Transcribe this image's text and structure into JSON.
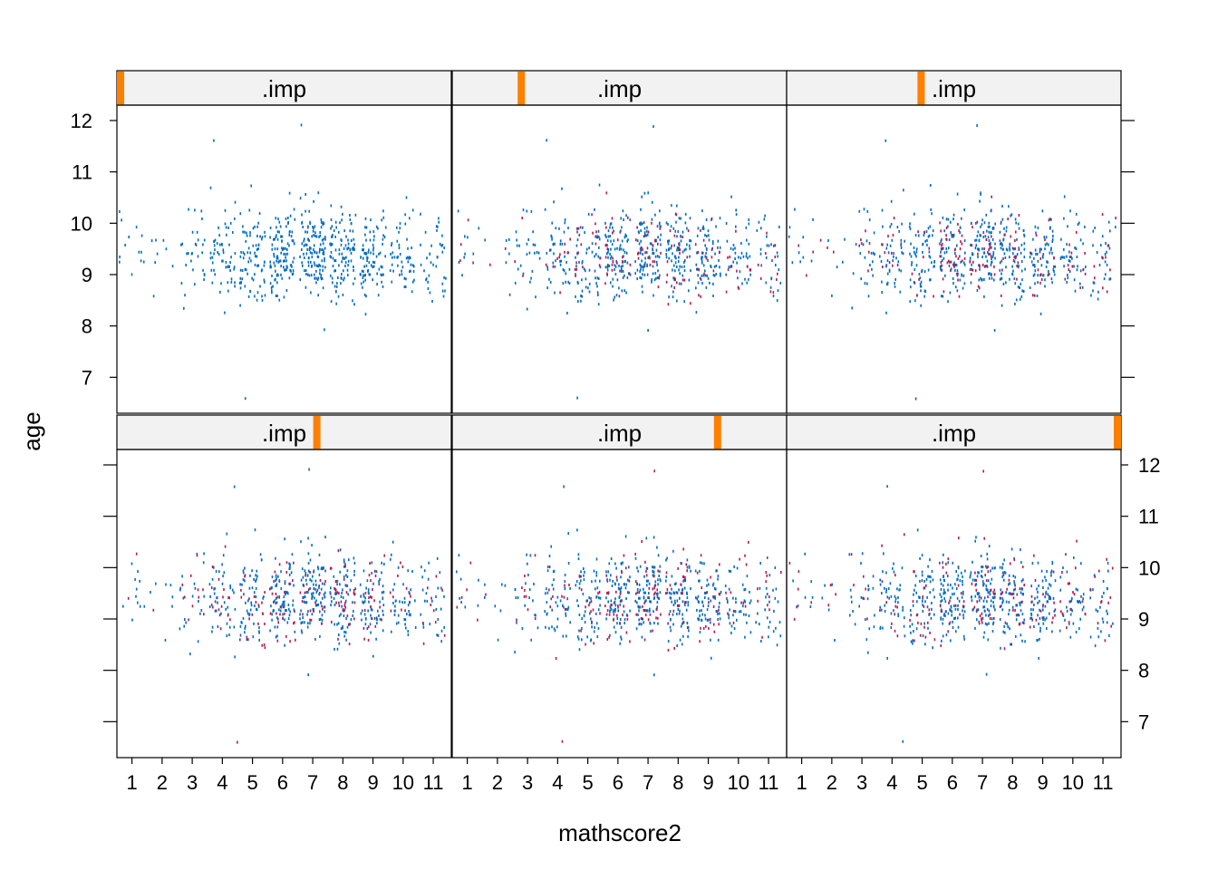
{
  "chart_data": {
    "type": "scatter",
    "title": "",
    "xlabel": "mathscore2",
    "ylabel": "age",
    "strip_label": ".imp",
    "xlim": [
      0.5,
      11.6
    ],
    "ylim": [
      6.3,
      12.3
    ],
    "x_ticks": [
      "1",
      "2",
      "3",
      "4",
      "5",
      "6",
      "7",
      "8",
      "9",
      "10",
      "11"
    ],
    "y_ticks": [
      "7",
      "8",
      "9",
      "10",
      "11",
      "12"
    ],
    "colors": {
      "observed": "#006CC2",
      "imputed": "#B61A51",
      "strip_bg": "#F2F2F2",
      "strip_indicator": "#FF7F00",
      "frame": "#000000"
    },
    "panels": [
      {
        "imp": 0,
        "imputed_fraction": 0.0,
        "strip_indicator": 0.0
      },
      {
        "imp": 1,
        "imputed_fraction": 0.25,
        "strip_indicator": 0.2
      },
      {
        "imp": 2,
        "imputed_fraction": 0.25,
        "strip_indicator": 0.4
      },
      {
        "imp": 3,
        "imputed_fraction": 0.25,
        "strip_indicator": 0.6
      },
      {
        "imp": 4,
        "imputed_fraction": 0.25,
        "strip_indicator": 0.8
      },
      {
        "imp": 5,
        "imputed_fraction": 0.25,
        "strip_indicator": 1.0
      }
    ],
    "points_per_panel": 700,
    "x_distribution": {
      "center": 7.0,
      "sd": 2.4,
      "min": 1,
      "max": 11
    },
    "y_distribution": {
      "center": 9.4,
      "sd": 0.45,
      "min": 6.6,
      "max": 11.9
    },
    "outliers": [
      {
        "x": 7,
        "y": 11.9
      },
      {
        "x": 4.5,
        "y": 6.6
      },
      {
        "x": 2,
        "y": 8.6
      },
      {
        "x": 4,
        "y": 11.6
      }
    ]
  }
}
